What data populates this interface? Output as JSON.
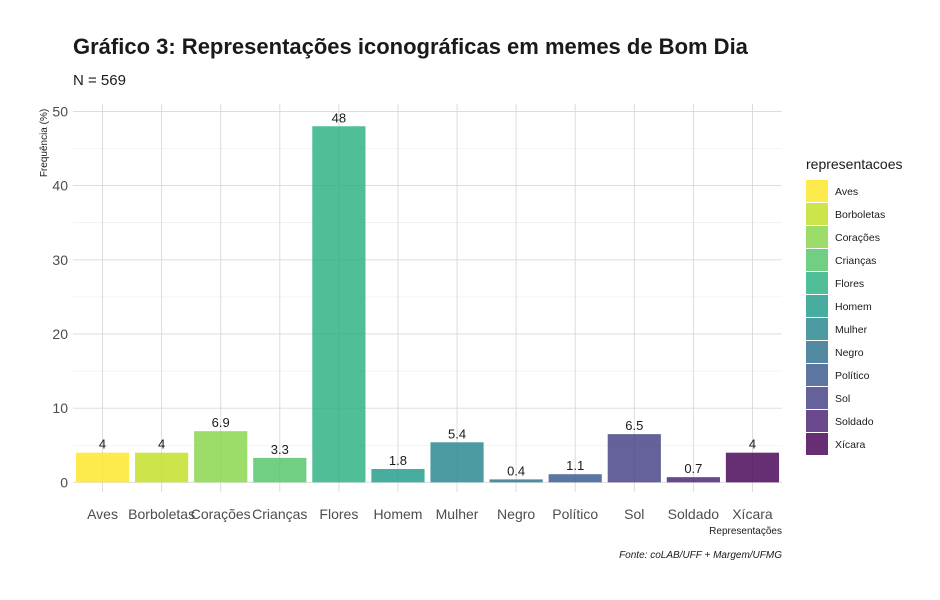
{
  "chart_data": {
    "type": "bar",
    "title": "Gráfico 3: Representações iconográficas em memes de Bom Dia",
    "subtitle": "N = 569",
    "xlabel": "Representações",
    "ylabel": "Frequência (%)",
    "caption": "Fonte: coLAB/UFF + Margem/UFMG",
    "ylim": [
      0,
      50
    ],
    "yticks": [
      0,
      10,
      20,
      30,
      40,
      50
    ],
    "grid": true,
    "legend_title": "representacoes",
    "legend_position": "right",
    "categories": [
      "Aves",
      "Borboletas",
      "Corações",
      "Crianças",
      "Flores",
      "Homem",
      "Mulher",
      "Negro",
      "Político",
      "Sol",
      "Soldado",
      "Xícara"
    ],
    "values": [
      4,
      4,
      6.9,
      3.3,
      48,
      1.8,
      5.4,
      0.4,
      1.1,
      6.5,
      0.7,
      4
    ],
    "value_labels": [
      "4",
      "4",
      "6.9",
      "3.3",
      "48",
      "1.8",
      "5.4",
      "0.4",
      "1.1",
      "6.5",
      "0.7",
      "4"
    ],
    "colors": [
      "#FDE725",
      "#C2DF23",
      "#86D549",
      "#52C569",
      "#2AB07F",
      "#1E9B8A",
      "#25858E",
      "#2D708E",
      "#38588C",
      "#433E85",
      "#482173",
      "#440154"
    ]
  }
}
